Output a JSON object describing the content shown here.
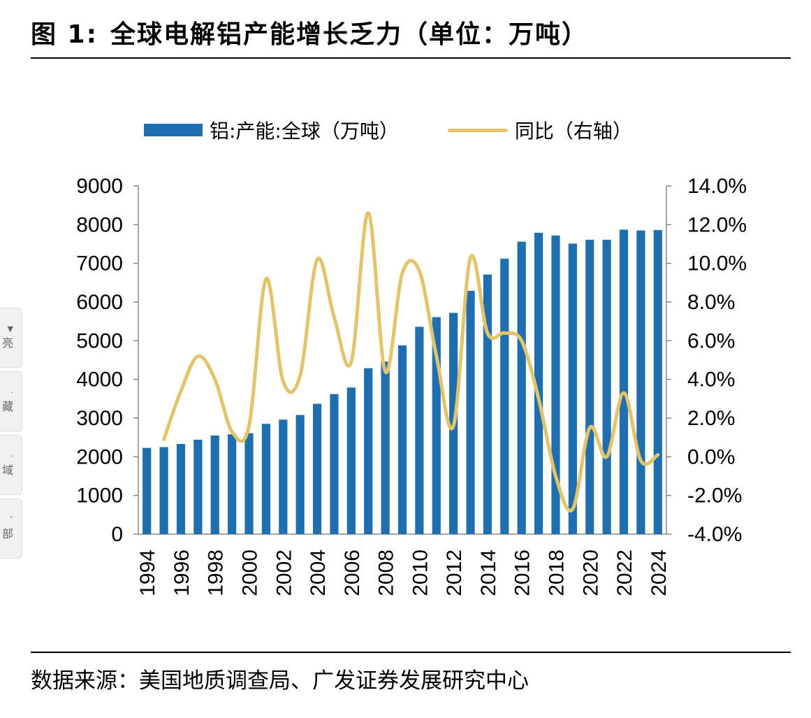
{
  "figure": {
    "label": "图 1:",
    "title": "全球电解铝产能增长乏力（单位：万吨）",
    "source": "数据来源：美国地质调查局、广发证券发展研究中心"
  },
  "side_tabs": [
    {
      "icon": "chevron-down-icon",
      "label": "亮"
    },
    {
      "icon": "dot-icon",
      "label": "藏"
    },
    {
      "icon": "dot-icon",
      "label": "域"
    },
    {
      "icon": "arrow-icon",
      "label": "部"
    }
  ],
  "colors": {
    "bar": "#1F6EAF",
    "line": "#E3C46A",
    "axis": "#888888"
  },
  "chart_data": {
    "type": "bar+line",
    "legend_placement": "top",
    "grid": false,
    "x": [
      1994,
      1995,
      1996,
      1997,
      1998,
      1999,
      2000,
      2001,
      2002,
      2003,
      2004,
      2005,
      2006,
      2007,
      2008,
      2009,
      2010,
      2011,
      2012,
      2013,
      2014,
      2015,
      2016,
      2017,
      2018,
      2019,
      2020,
      2021,
      2022,
      2023,
      2024
    ],
    "x_tick_labels": [
      "1994",
      "1996",
      "1998",
      "2000",
      "2002",
      "2004",
      "2006",
      "2008",
      "2010",
      "2012",
      "2014",
      "2016",
      "2018",
      "2020",
      "2022",
      "2024"
    ],
    "series": [
      {
        "name": "铝:产能:全球（万吨）",
        "type": "bar",
        "axis": "left",
        "values": [
          2230,
          2250,
          2330,
          2440,
          2550,
          2580,
          2610,
          2850,
          2960,
          3080,
          3370,
          3620,
          3790,
          4290,
          4460,
          4880,
          5360,
          5610,
          5720,
          6290,
          6710,
          7120,
          7560,
          7790,
          7720,
          7510,
          7610,
          7610,
          7870,
          7850,
          7860
        ]
      },
      {
        "name": "同比（右轴）",
        "type": "line",
        "axis": "right",
        "values": [
          null,
          0.9,
          3.4,
          5.2,
          4.0,
          1.3,
          1.6,
          9.2,
          3.9,
          4.2,
          10.2,
          7.2,
          4.9,
          12.6,
          4.4,
          9.5,
          9.6,
          5.2,
          1.6,
          10.3,
          6.4,
          6.4,
          6.0,
          3.0,
          -1.0,
          -2.7,
          1.5,
          0.0,
          3.3,
          -0.2,
          0.1
        ]
      }
    ],
    "y_left": {
      "min": 0,
      "max": 9000,
      "step": 1000,
      "ticks": [
        "0",
        "1000",
        "2000",
        "3000",
        "4000",
        "5000",
        "6000",
        "7000",
        "8000",
        "9000"
      ]
    },
    "y_right": {
      "min": -4,
      "max": 14,
      "step": 2,
      "ticks": [
        "-4.0%",
        "-2.0%",
        "0.0%",
        "2.0%",
        "4.0%",
        "6.0%",
        "8.0%",
        "10.0%",
        "12.0%",
        "14.0%"
      ]
    }
  }
}
